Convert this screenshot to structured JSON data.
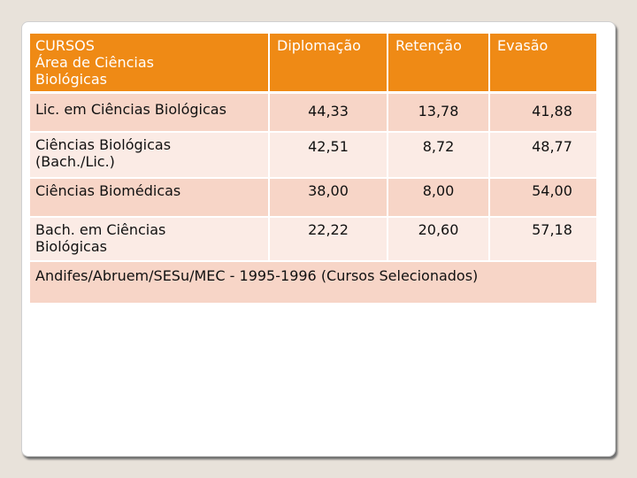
{
  "table": {
    "headers": {
      "course_line1": "CURSOS",
      "course_line2": "Área de Ciências",
      "course_line3": "Biológicas",
      "diplomacao": "Diplomação",
      "retencao": "Retenção",
      "evasao": "Evasão"
    },
    "rows": [
      {
        "course_line1": "Lic. em Ciências Biológicas",
        "course_line2": "",
        "diplomacao": "44,33",
        "retencao": "13,78",
        "evasao": "41,88"
      },
      {
        "course_line1": "Ciências Biológicas",
        "course_line2": "(Bach./Lic.)",
        "diplomacao": "42,51",
        "retencao": "8,72",
        "evasao": "48,77"
      },
      {
        "course_line1": "Ciências Biomédicas",
        "course_line2": "",
        "diplomacao": "38,00",
        "retencao": "8,00",
        "evasao": "54,00"
      },
      {
        "course_line1": "Bach. em Ciências",
        "course_line2": "Biológicas",
        "diplomacao": "22,22",
        "retencao": "20,60",
        "evasao": "57,18"
      }
    ],
    "source": "Andifes/Abruem/SESu/MEC - 1995-1996 (Cursos Selecionados)"
  },
  "colors": {
    "header_bg": "#ef8a15",
    "row_odd_bg": "#f7d5c7",
    "row_even_bg": "#fbebe5",
    "page_bg": "#e8e2da"
  }
}
